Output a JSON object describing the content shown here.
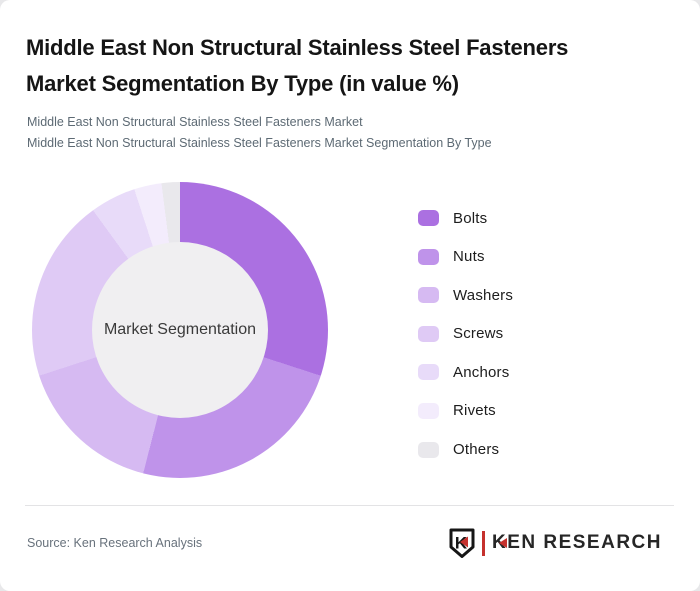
{
  "page": {
    "title_lines": [
      "Middle East Non Structural Stainless Steel Fasteners",
      "Market Segmentation By Type (in value %)"
    ],
    "subtitle_lines": [
      "Middle East Non Structural Stainless Steel Fasteners Market",
      "Middle East Non Structural Stainless Steel Fasteners Market Segmentation By Type"
    ]
  },
  "chart_data": {
    "type": "pie",
    "variant": "donut",
    "title": "Middle East Non Structural Stainless Steel Fasteners Market Segmentation By Type (in value %)",
    "unit": "value %",
    "center_label": "Market Segmentation",
    "start_angle_deg": 0,
    "direction": "clockwise",
    "legend_position": "right",
    "inner_circle_color": "#f0eff1",
    "series": [
      {
        "name": "Bolts",
        "value": 30,
        "color": "#ab70e1"
      },
      {
        "name": "Nuts",
        "value": 24,
        "color": "#bf93ea"
      },
      {
        "name": "Washers",
        "value": 16,
        "color": "#d6baf2"
      },
      {
        "name": "Screws",
        "value": 20,
        "color": "#dfcaf5"
      },
      {
        "name": "Anchors",
        "value": 5,
        "color": "#e8dbf9"
      },
      {
        "name": "Rivets",
        "value": 3,
        "color": "#f3ecfc"
      },
      {
        "name": "Others",
        "value": 2,
        "color": "#e9e8ec"
      }
    ]
  },
  "footer": {
    "source": "Source: Ken Research Analysis",
    "logo": {
      "badge_letter": "K",
      "brand_k": "K",
      "brand_rest": "EN RESEARCH",
      "accent": "#c5312d"
    }
  }
}
